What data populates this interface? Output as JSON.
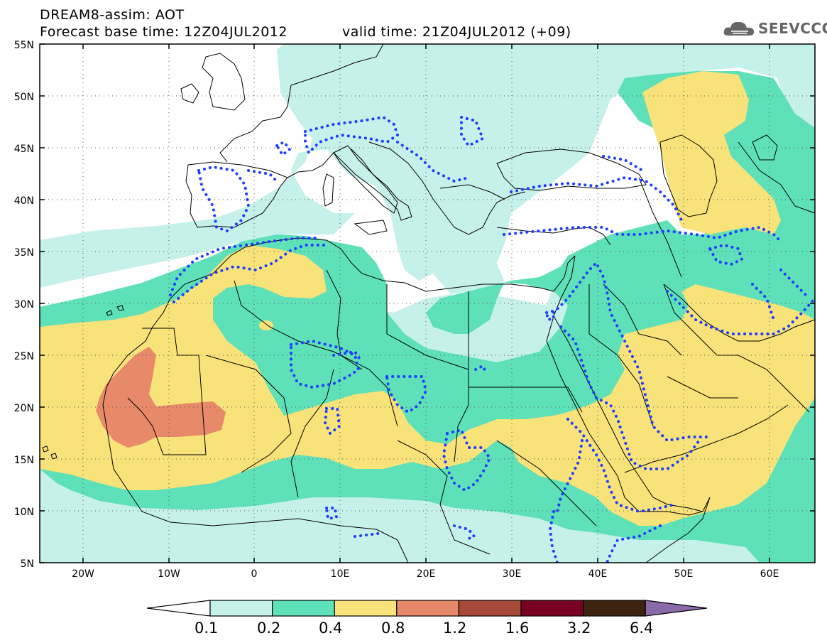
{
  "header": {
    "line1": "DREAM8-assim: AOT",
    "line2": "Forecast base time: 12Z04JUL2012",
    "line2b": "valid time: 21Z04JUL2012 (+09)",
    "logo": "SEEVCCC"
  },
  "axes": {
    "lat_labels": [
      "55N",
      "50N",
      "45N",
      "40N",
      "35N",
      "30N",
      "25N",
      "20N",
      "15N",
      "10N",
      "5N"
    ],
    "lon_labels": [
      "20W",
      "10W",
      "0",
      "10E",
      "20E",
      "30E",
      "40E",
      "50E",
      "60E"
    ]
  },
  "colorbar": {
    "labels": [
      "0.1",
      "0.2",
      "0.4",
      "0.8",
      "1.2",
      "1.6",
      "3.2",
      "6.4"
    ],
    "colors": [
      "#ffffff",
      "#c6f0ea",
      "#5ee0b8",
      "#f8e27a",
      "#e8896a",
      "#a84a3a",
      "#7a0024",
      "#3d2210",
      "#8a6aa8"
    ]
  },
  "colors": {
    "c1": "#c6f0ea",
    "c2": "#5ee0b8",
    "c3": "#f8e27a",
    "c4": "#e8896a",
    "coast": "#000000",
    "dots": "#1e3cff"
  }
}
